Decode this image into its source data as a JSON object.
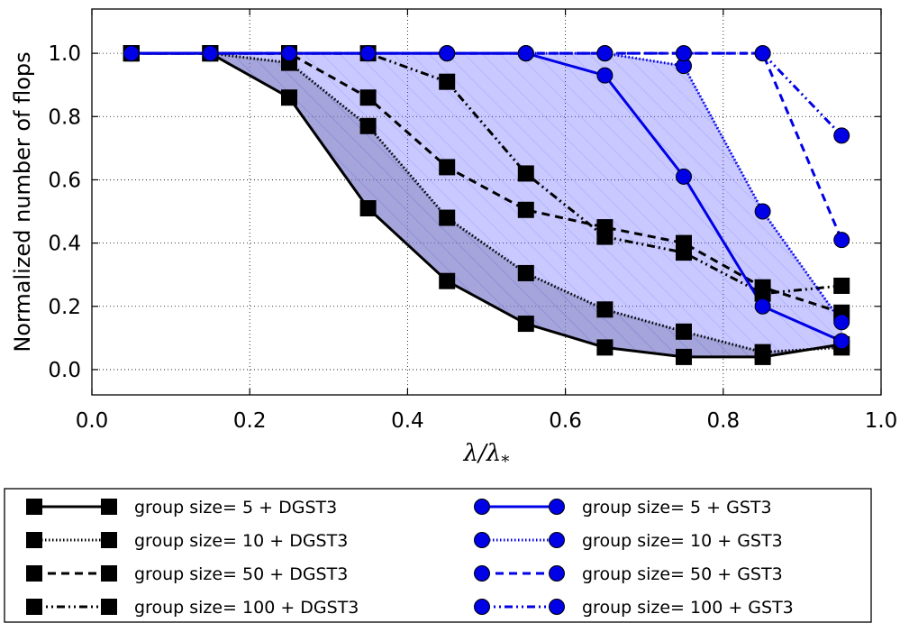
{
  "chart_data": {
    "type": "line",
    "title": "",
    "xlabel": "λ/λ",
    "xlabel_subscript": "*",
    "ylabel": "Normalized number of flops",
    "xlim": [
      0.0,
      1.0
    ],
    "ylim": [
      -0.08,
      1.14
    ],
    "x_ticks": [
      "0.0",
      "0.2",
      "0.4",
      "0.6",
      "0.8",
      "1.0"
    ],
    "y_ticks": [
      "0.0",
      "0.2",
      "0.4",
      "0.6",
      "0.8",
      "1.0"
    ],
    "grid": true,
    "legend_position": "bottom, below plot, two columns",
    "x": [
      0.05,
      0.15,
      0.25,
      0.35,
      0.45,
      0.55,
      0.65,
      0.75,
      0.85,
      0.95
    ],
    "series": [
      {
        "name": "group size= 5 + DGST3",
        "color": "#000000",
        "marker": "square",
        "linestyle": "solid",
        "values": [
          1.0,
          1.0,
          0.86,
          0.51,
          0.28,
          0.145,
          0.07,
          0.04,
          0.04,
          0.08
        ]
      },
      {
        "name": "group size= 10 + DGST3",
        "color": "#000000",
        "marker": "square",
        "linestyle": "dotted",
        "values": [
          1.0,
          1.0,
          0.97,
          0.77,
          0.48,
          0.305,
          0.19,
          0.12,
          0.055,
          0.07
        ]
      },
      {
        "name": "group size= 50 + DGST3",
        "color": "#000000",
        "marker": "square",
        "linestyle": "dashed",
        "values": [
          1.0,
          1.0,
          1.0,
          0.86,
          0.64,
          0.505,
          0.45,
          0.4,
          0.26,
          0.18
        ]
      },
      {
        "name": "group size= 100 + DGST3",
        "color": "#000000",
        "marker": "square",
        "linestyle": "dashdot",
        "values": [
          1.0,
          1.0,
          1.0,
          1.0,
          0.91,
          0.62,
          0.42,
          0.37,
          0.24,
          0.265
        ]
      },
      {
        "name": "group size= 5 + GST3",
        "color": "#0000e6",
        "marker": "circle",
        "linestyle": "solid",
        "values": [
          1.0,
          1.0,
          1.0,
          1.0,
          1.0,
          1.0,
          0.93,
          0.61,
          0.2,
          0.09
        ]
      },
      {
        "name": "group size= 10 + GST3",
        "color": "#0000e6",
        "marker": "circle",
        "linestyle": "dotted",
        "values": [
          1.0,
          1.0,
          1.0,
          1.0,
          1.0,
          1.0,
          1.0,
          0.96,
          0.5,
          0.15
        ]
      },
      {
        "name": "group size= 50 + GST3",
        "color": "#0000e6",
        "marker": "circle",
        "linestyle": "dashed",
        "values": [
          1.0,
          1.0,
          1.0,
          1.0,
          1.0,
          1.0,
          1.0,
          1.0,
          1.0,
          0.41
        ]
      },
      {
        "name": "group size= 100 + GST3",
        "color": "#0000e6",
        "marker": "circle",
        "linestyle": "dashdot",
        "values": [
          1.0,
          1.0,
          1.0,
          1.0,
          1.0,
          1.0,
          1.0,
          1.0,
          1.0,
          0.74
        ]
      }
    ],
    "bands": [
      {
        "color": "#999999",
        "opacity": 0.5,
        "series_pair": [
          0,
          1
        ]
      },
      {
        "color": "#4d4dff",
        "opacity": 0.3,
        "series_pair": [
          0,
          5
        ]
      }
    ]
  }
}
